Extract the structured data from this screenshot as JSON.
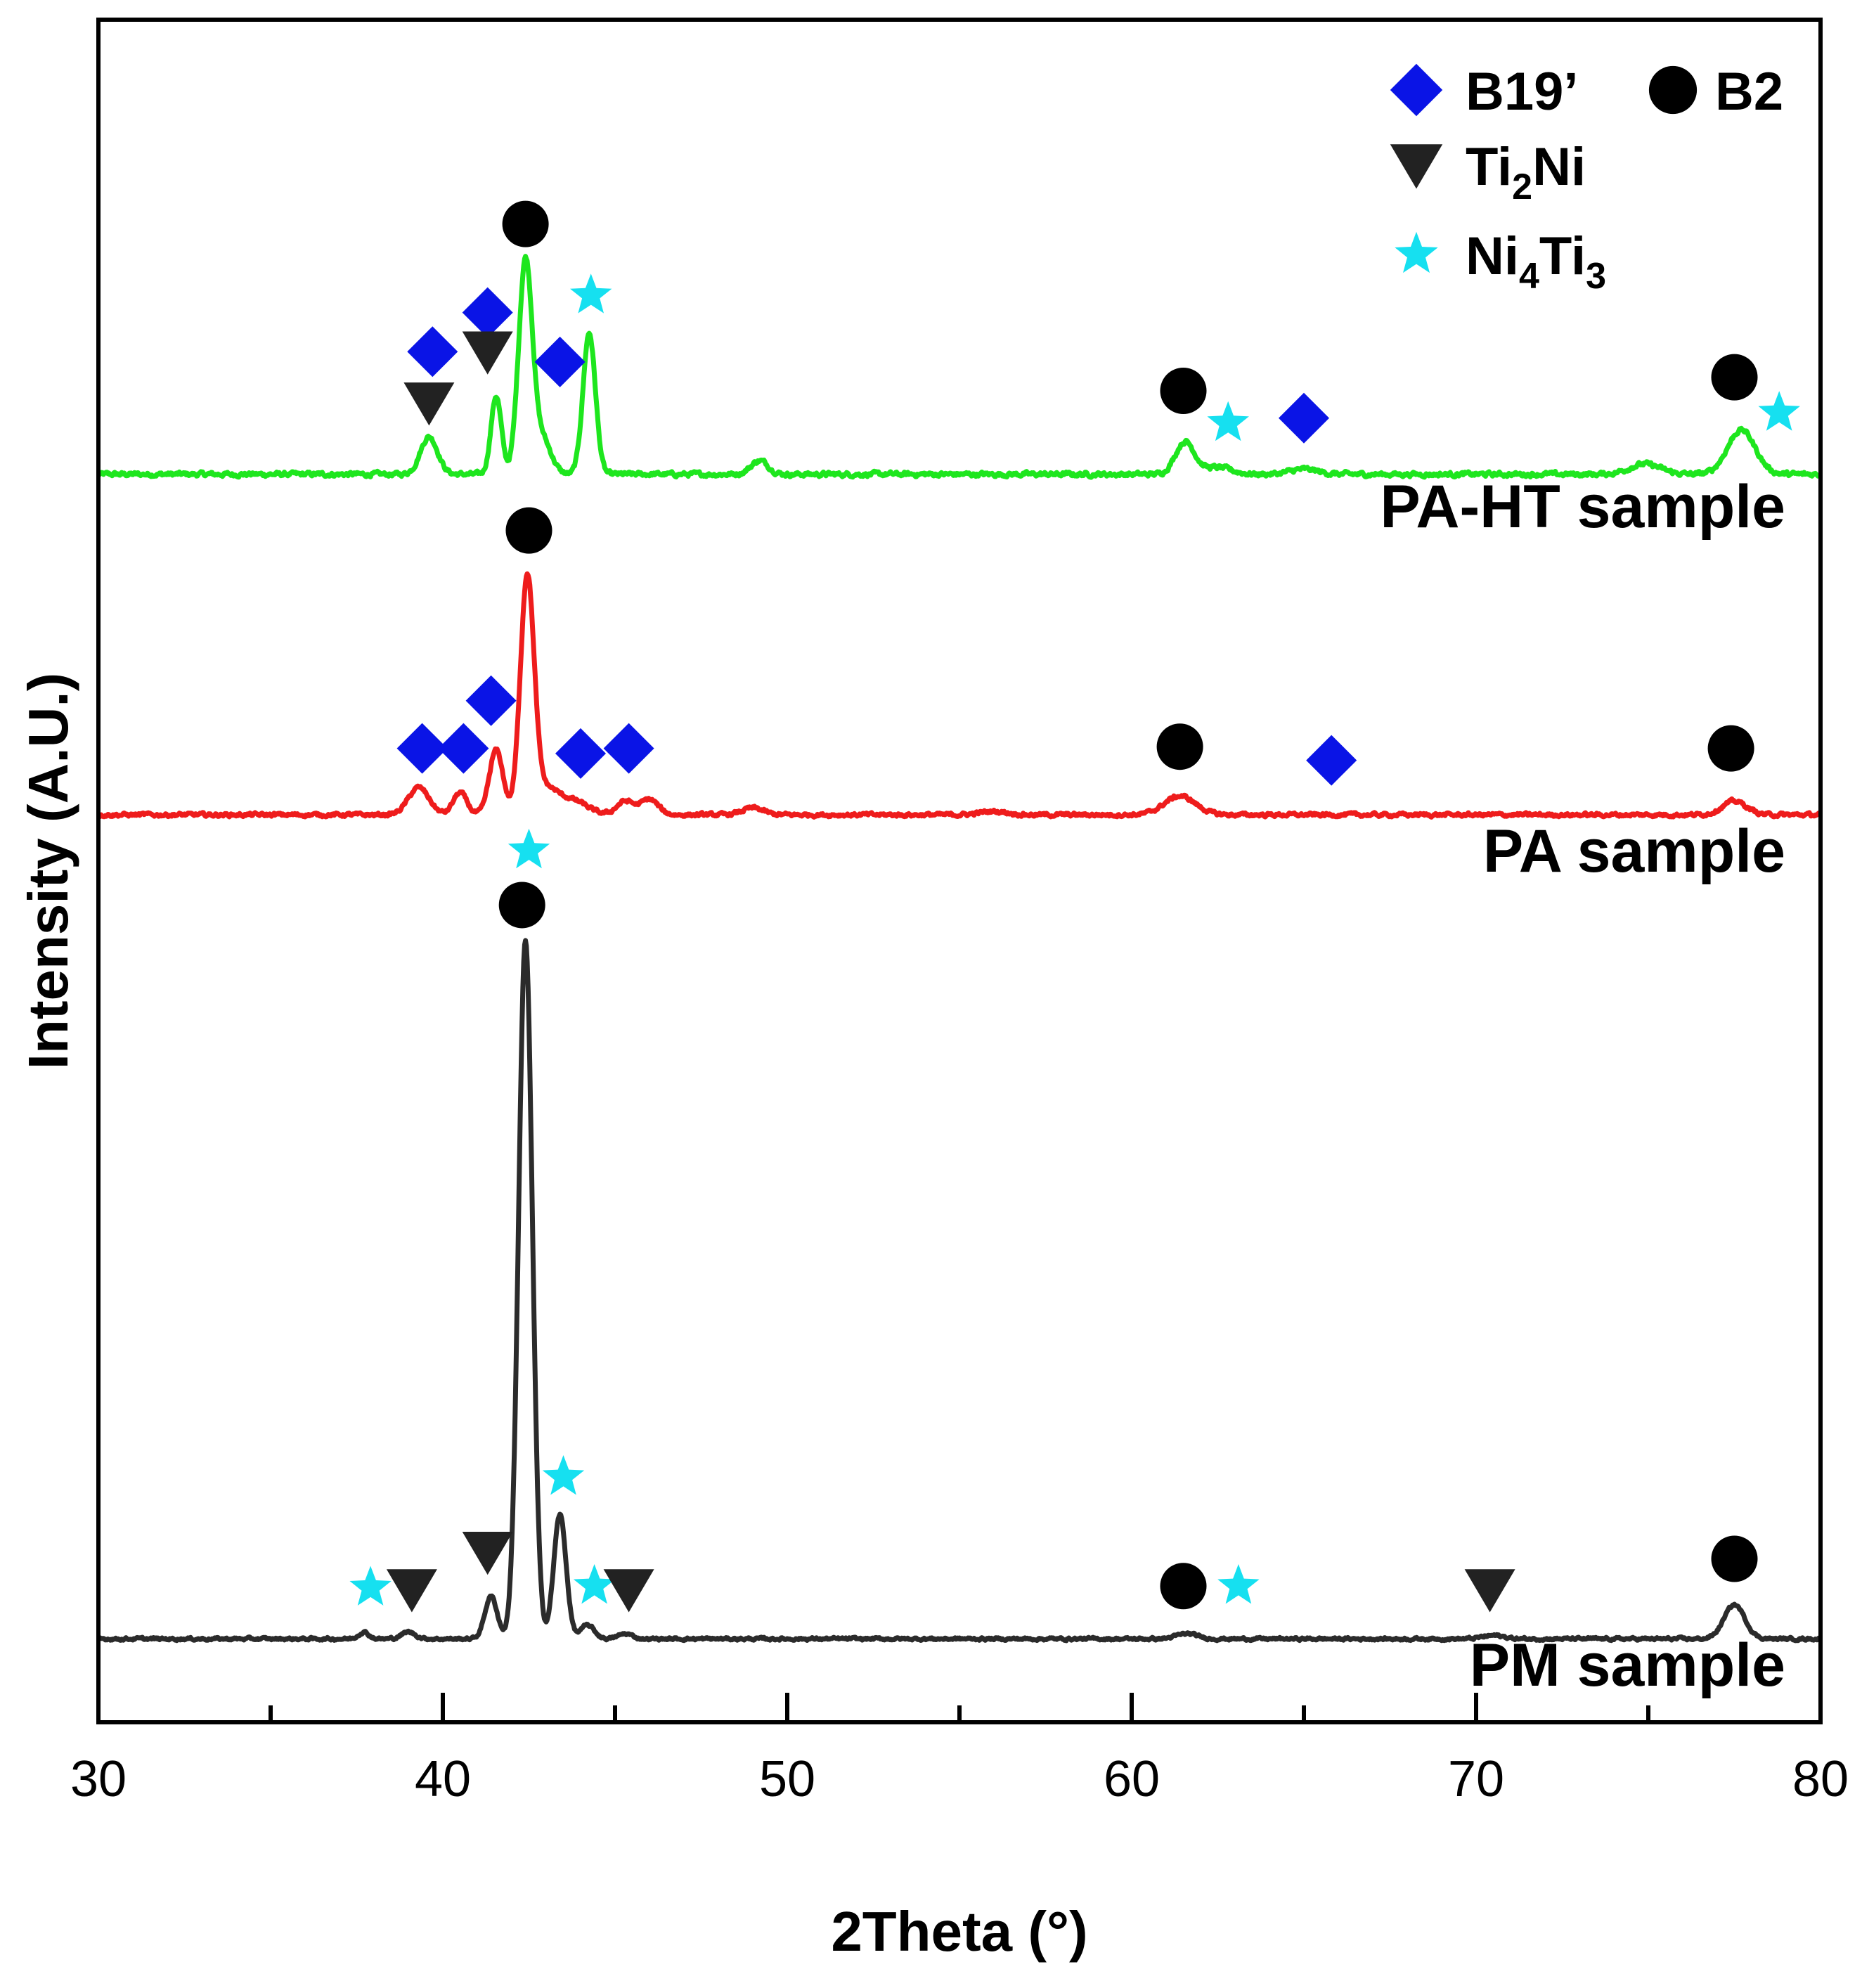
{
  "chart_data": {
    "type": "line",
    "xlabel": "2Theta (°)",
    "ylabel": "Intensity (A.U.)",
    "xlim": [
      30,
      80
    ],
    "xticks": [
      30,
      40,
      50,
      60,
      70,
      80
    ],
    "xtick_labels": [
      "30",
      "40",
      "50",
      "60",
      "70",
      "80"
    ],
    "minor_xticks": [
      35,
      45,
      55,
      65,
      75
    ],
    "yticks_shown": false,
    "intensity_scale": "arbitrary units (0 = bottom of plot frame, 100 = top of plot frame)",
    "legend": {
      "position": "top-right",
      "entries": [
        {
          "phase": "b19",
          "parts": [
            {
              "t": "B19’",
              "sub": false
            }
          ],
          "marker": "diamond",
          "color": "#0a14e6"
        },
        {
          "phase": "b2",
          "parts": [
            {
              "t": "B2",
              "sub": false
            }
          ],
          "marker": "circle",
          "color": "#000000"
        },
        {
          "phase": "ti2ni",
          "parts": [
            {
              "t": "Ti",
              "sub": false
            },
            {
              "t": "2",
              "sub": true
            },
            {
              "t": "Ni",
              "sub": false
            }
          ],
          "marker": "triangle-down",
          "color": "#222222"
        },
        {
          "phase": "ni4ti3",
          "parts": [
            {
              "t": "Ni",
              "sub": false
            },
            {
              "t": "4",
              "sub": true
            },
            {
              "t": "Ti",
              "sub": false
            },
            {
              "t": "3",
              "sub": true
            }
          ],
          "marker": "star",
          "color": "#16e0f0"
        }
      ]
    },
    "series": [
      {
        "name": "PA-HT sample",
        "color": "#1ee61e",
        "baseline": 73.3,
        "noise": 0.25,
        "peaks": [
          {
            "x": 39.6,
            "h": 2.2,
            "w": 0.25
          },
          {
            "x": 41.55,
            "h": 4.6,
            "w": 0.15
          },
          {
            "x": 42.4,
            "h": 12.5,
            "w": 0.2
          },
          {
            "x": 42.9,
            "h": 2.0,
            "w": 0.25
          },
          {
            "x": 44.25,
            "h": 8.3,
            "w": 0.18
          },
          {
            "x": 49.2,
            "h": 0.8,
            "w": 0.25
          },
          {
            "x": 61.55,
            "h": 1.9,
            "w": 0.28
          },
          {
            "x": 62.5,
            "h": 0.4,
            "w": 0.4
          },
          {
            "x": 65.0,
            "h": 0.3,
            "w": 0.4
          },
          {
            "x": 74.9,
            "h": 0.6,
            "w": 0.45
          },
          {
            "x": 77.7,
            "h": 2.6,
            "w": 0.4
          }
        ],
        "label": "PA-HT sample",
        "markers": [
          {
            "phase": "b19",
            "x": 39.7,
            "y": 80.5
          },
          {
            "phase": "b19",
            "x": 41.3,
            "y": 82.8
          },
          {
            "phase": "b19",
            "x": 43.4,
            "y": 79.9
          },
          {
            "phase": "b2",
            "x": 42.4,
            "y": 88.0
          },
          {
            "phase": "b2",
            "x": 61.5,
            "y": 78.2
          },
          {
            "phase": "b2",
            "x": 77.5,
            "y": 79.0
          },
          {
            "phase": "b19",
            "x": 65.0,
            "y": 76.6
          },
          {
            "phase": "ti2ni",
            "x": 39.6,
            "y": 77.5
          },
          {
            "phase": "ti2ni",
            "x": 41.3,
            "y": 80.5
          },
          {
            "phase": "ni4ti3",
            "x": 44.3,
            "y": 83.8
          },
          {
            "phase": "ni4ti3",
            "x": 62.8,
            "y": 76.3
          },
          {
            "phase": "ni4ti3",
            "x": 78.8,
            "y": 76.9
          }
        ]
      },
      {
        "name": "PA sample",
        "color": "#ee1c1c",
        "baseline": 53.3,
        "noise": 0.2,
        "peaks": [
          {
            "x": 39.3,
            "h": 1.6,
            "w": 0.3
          },
          {
            "x": 40.5,
            "h": 1.3,
            "w": 0.2
          },
          {
            "x": 41.55,
            "h": 3.8,
            "w": 0.2
          },
          {
            "x": 42.45,
            "h": 13.8,
            "w": 0.2
          },
          {
            "x": 43.0,
            "h": 1.5,
            "w": 0.35
          },
          {
            "x": 43.8,
            "h": 0.8,
            "w": 0.4
          },
          {
            "x": 45.3,
            "h": 0.8,
            "w": 0.25
          },
          {
            "x": 46.0,
            "h": 0.9,
            "w": 0.25
          },
          {
            "x": 49.0,
            "h": 0.4,
            "w": 0.3
          },
          {
            "x": 56.0,
            "h": 0.2,
            "w": 0.4
          },
          {
            "x": 61.4,
            "h": 1.1,
            "w": 0.45
          },
          {
            "x": 77.5,
            "h": 0.8,
            "w": 0.35
          }
        ],
        "label": "PA sample",
        "markers": [
          {
            "phase": "b19",
            "x": 39.4,
            "y": 57.2
          },
          {
            "phase": "b19",
            "x": 40.6,
            "y": 57.2
          },
          {
            "phase": "b19",
            "x": 41.4,
            "y": 60.0
          },
          {
            "phase": "b19",
            "x": 44.0,
            "y": 56.9
          },
          {
            "phase": "b19",
            "x": 45.4,
            "y": 57.2
          },
          {
            "phase": "b19",
            "x": 65.8,
            "y": 56.5
          },
          {
            "phase": "b2",
            "x": 42.5,
            "y": 70.0
          },
          {
            "phase": "b2",
            "x": 61.4,
            "y": 57.3
          },
          {
            "phase": "b2",
            "x": 77.4,
            "y": 57.2
          },
          {
            "phase": "ni4ti3",
            "x": 42.5,
            "y": 51.2
          }
        ]
      },
      {
        "name": "PM sample",
        "color": "#2b2b2b",
        "baseline": 4.9,
        "noise": 0.15,
        "peaks": [
          {
            "x": 37.7,
            "h": 0.4,
            "w": 0.15
          },
          {
            "x": 39.0,
            "h": 0.4,
            "w": 0.2
          },
          {
            "x": 41.4,
            "h": 2.5,
            "w": 0.18
          },
          {
            "x": 42.4,
            "h": 41.0,
            "w": 0.2
          },
          {
            "x": 43.4,
            "h": 7.3,
            "w": 0.18
          },
          {
            "x": 44.2,
            "h": 0.8,
            "w": 0.2
          },
          {
            "x": 45.3,
            "h": 0.3,
            "w": 0.2
          },
          {
            "x": 61.6,
            "h": 0.3,
            "w": 0.3
          },
          {
            "x": 70.5,
            "h": 0.2,
            "w": 0.3
          },
          {
            "x": 77.5,
            "h": 2.0,
            "w": 0.3
          }
        ],
        "label": "PM sample",
        "markers": [
          {
            "phase": "b2",
            "x": 42.3,
            "y": 48.0
          },
          {
            "phase": "b2",
            "x": 61.5,
            "y": 8.0
          },
          {
            "phase": "b2",
            "x": 77.5,
            "y": 9.6
          },
          {
            "phase": "ni4ti3",
            "x": 37.9,
            "y": 7.9
          },
          {
            "phase": "ni4ti3",
            "x": 43.5,
            "y": 14.4
          },
          {
            "phase": "ni4ti3",
            "x": 44.4,
            "y": 8.0
          },
          {
            "phase": "ni4ti3",
            "x": 63.1,
            "y": 8.0
          },
          {
            "phase": "ti2ni",
            "x": 39.1,
            "y": 7.8
          },
          {
            "phase": "ti2ni",
            "x": 41.3,
            "y": 10.0
          },
          {
            "phase": "ti2ni",
            "x": 45.4,
            "y": 7.8
          },
          {
            "phase": "ti2ni",
            "x": 70.4,
            "y": 7.8
          }
        ]
      }
    ]
  }
}
